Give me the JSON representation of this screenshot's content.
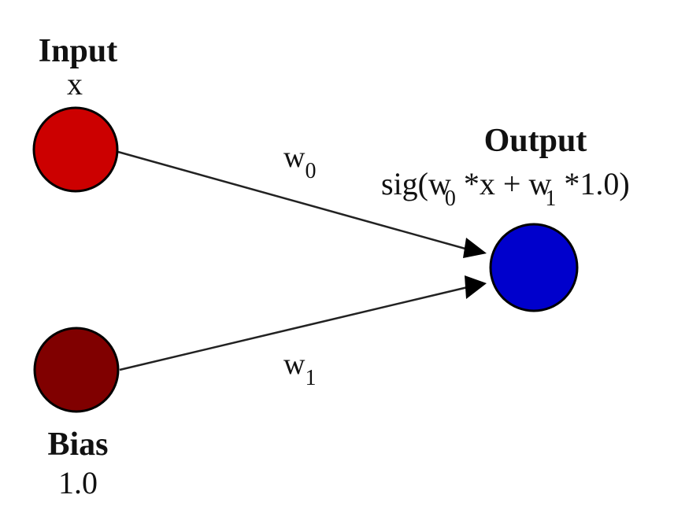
{
  "nodes": {
    "input": {
      "title": "Input",
      "value": "x",
      "color": "#cc0000"
    },
    "bias": {
      "title": "Bias",
      "value": "1.0",
      "color": "#800000"
    },
    "output": {
      "title": "Output",
      "formula": {
        "prefix": "sig(w",
        "w0_sub": "0",
        "middle": " *x + w",
        "w1_sub": "1",
        "suffix": " *1.0)"
      },
      "color": "#0000cc"
    }
  },
  "edges": {
    "input_to_output": {
      "weight": "w",
      "weight_sub": "0"
    },
    "bias_to_output": {
      "weight": "w",
      "weight_sub": "1"
    }
  },
  "colors": {
    "edge_line": "#222222",
    "node_stroke": "#000000",
    "text": "#111111"
  }
}
